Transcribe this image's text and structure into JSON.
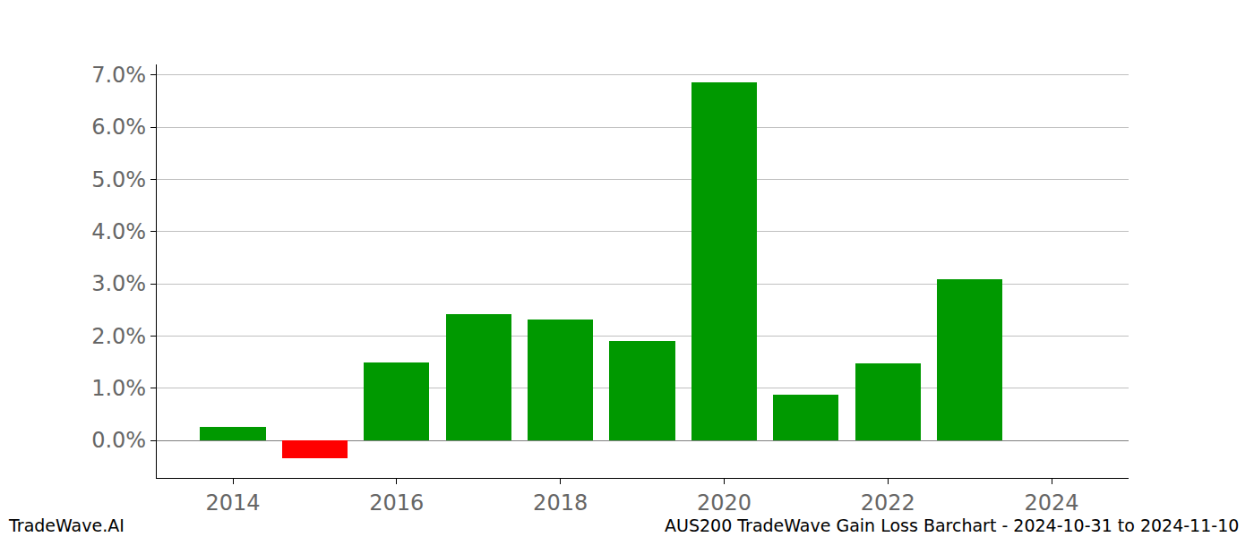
{
  "chart_data": {
    "type": "bar",
    "annotations": [
      "TradeWave.AI",
      "AUS200 TradeWave Gain Loss Barchart - 2024-10-31 to 2024-11-10"
    ],
    "x": [
      2014,
      2015,
      2016,
      2017,
      2018,
      2019,
      2020,
      2021,
      2022,
      2023
    ],
    "values": [
      0.25,
      -0.35,
      1.5,
      2.42,
      2.32,
      1.9,
      6.85,
      0.88,
      1.48,
      3.08
    ],
    "colors": [
      "#009900",
      "#ff0000",
      "#009900",
      "#009900",
      "#009900",
      "#009900",
      "#009900",
      "#009900",
      "#009900",
      "#009900"
    ],
    "xlim": [
      2013.07,
      2024.94
    ],
    "xticks": [
      2014,
      2016,
      2018,
      2020,
      2022,
      2024
    ],
    "ylim": [
      -0.72,
      7.2
    ],
    "yticks": [
      {
        "value": 0,
        "label": "0.0%"
      },
      {
        "value": 1,
        "label": "1.0%"
      },
      {
        "value": 2,
        "label": "2.0%"
      },
      {
        "value": 3,
        "label": "3.0%"
      },
      {
        "value": 4,
        "label": "4.0%"
      },
      {
        "value": 5,
        "label": "5.0%"
      },
      {
        "value": 6,
        "label": "6.0%"
      },
      {
        "value": 7,
        "label": "7.0%"
      }
    ],
    "grid": true
  }
}
